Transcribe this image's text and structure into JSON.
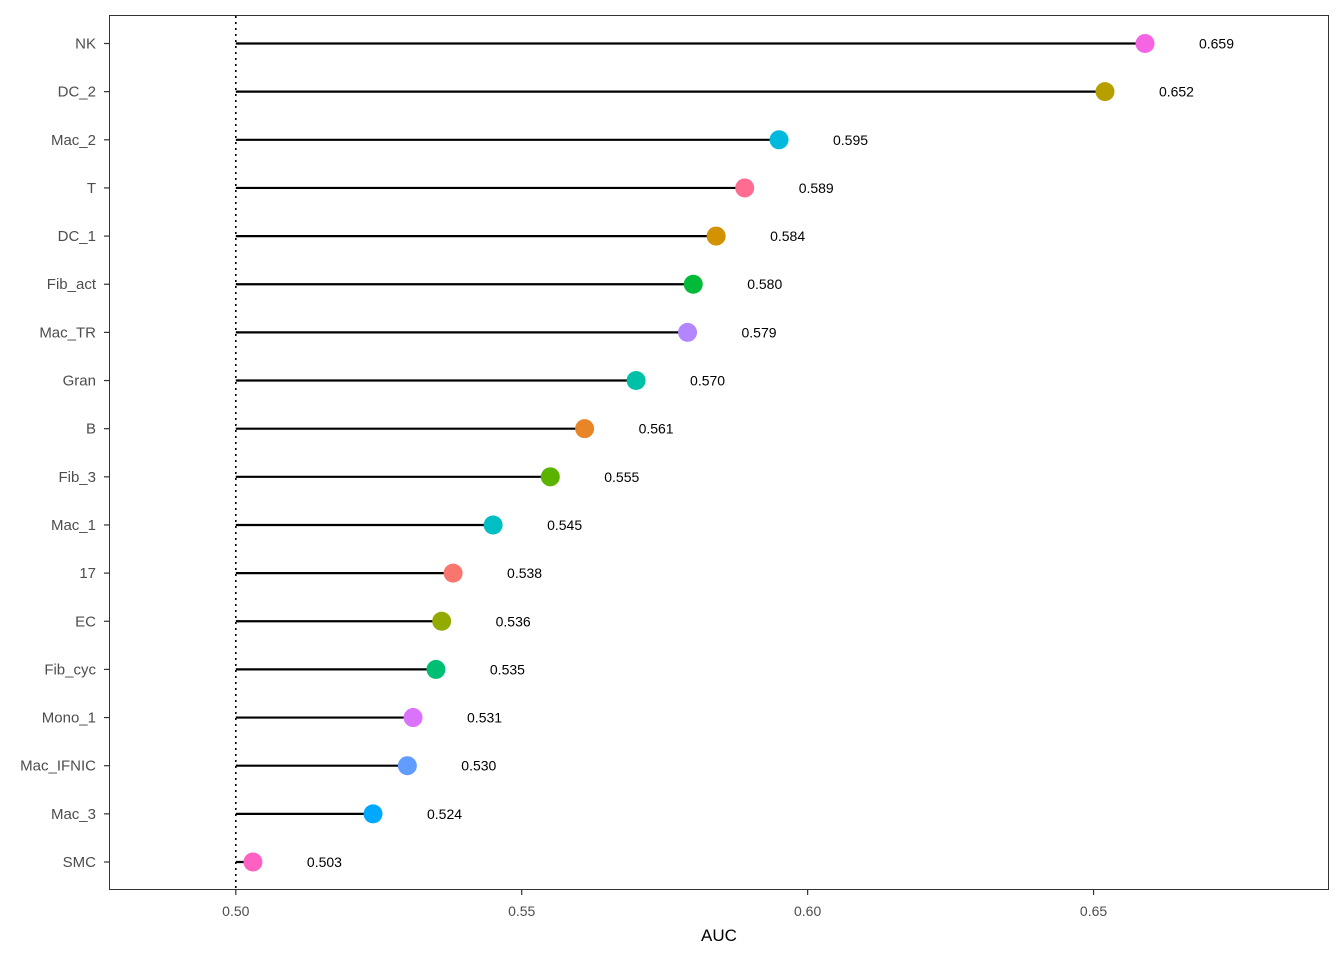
{
  "chart_data": {
    "type": "lollipop",
    "xlabel": "AUC",
    "ylabel": "",
    "xlim": [
      0.478,
      0.691
    ],
    "xticks": [
      0.5,
      0.55,
      0.6,
      0.65
    ],
    "xtick_labels": [
      "0.50",
      "0.55",
      "0.60",
      "0.65"
    ],
    "reference_line": 0.5,
    "grid": false,
    "points": [
      {
        "category": "NK",
        "value": 0.659,
        "label": "0.659",
        "color": "#F564E3"
      },
      {
        "category": "DC_2",
        "value": 0.652,
        "label": "0.652",
        "color": "#B79F00"
      },
      {
        "category": "Mac_2",
        "value": 0.595,
        "label": "0.595",
        "color": "#00BADE"
      },
      {
        "category": "T",
        "value": 0.589,
        "label": "0.589",
        "color": "#FF6C91"
      },
      {
        "category": "DC_1",
        "value": 0.584,
        "label": "0.584",
        "color": "#D39200"
      },
      {
        "category": "Fib_act",
        "value": 0.58,
        "label": "0.580",
        "color": "#00BA38"
      },
      {
        "category": "Mac_TR",
        "value": 0.579,
        "label": "0.579",
        "color": "#B385FF"
      },
      {
        "category": "Gran",
        "value": 0.57,
        "label": "0.570",
        "color": "#00C1A7"
      },
      {
        "category": "B",
        "value": 0.561,
        "label": "0.561",
        "color": "#E88526"
      },
      {
        "category": "Fib_3",
        "value": 0.555,
        "label": "0.555",
        "color": "#5BB300"
      },
      {
        "category": "Mac_1",
        "value": 0.545,
        "label": "0.545",
        "color": "#00BFC4"
      },
      {
        "category": "17",
        "value": 0.538,
        "label": "0.538",
        "color": "#F8766D"
      },
      {
        "category": "EC",
        "value": 0.536,
        "label": "0.536",
        "color": "#93AA00"
      },
      {
        "category": "Fib_cyc",
        "value": 0.535,
        "label": "0.535",
        "color": "#00BF74"
      },
      {
        "category": "Mono_1",
        "value": 0.531,
        "label": "0.531",
        "color": "#DB72FB"
      },
      {
        "category": "Mac_IFNIC",
        "value": 0.53,
        "label": "0.530",
        "color": "#619CFF"
      },
      {
        "category": "Mac_3",
        "value": 0.524,
        "label": "0.524",
        "color": "#00A9FF"
      },
      {
        "category": "SMC",
        "value": 0.503,
        "label": "0.503",
        "color": "#FF61C3"
      }
    ]
  }
}
